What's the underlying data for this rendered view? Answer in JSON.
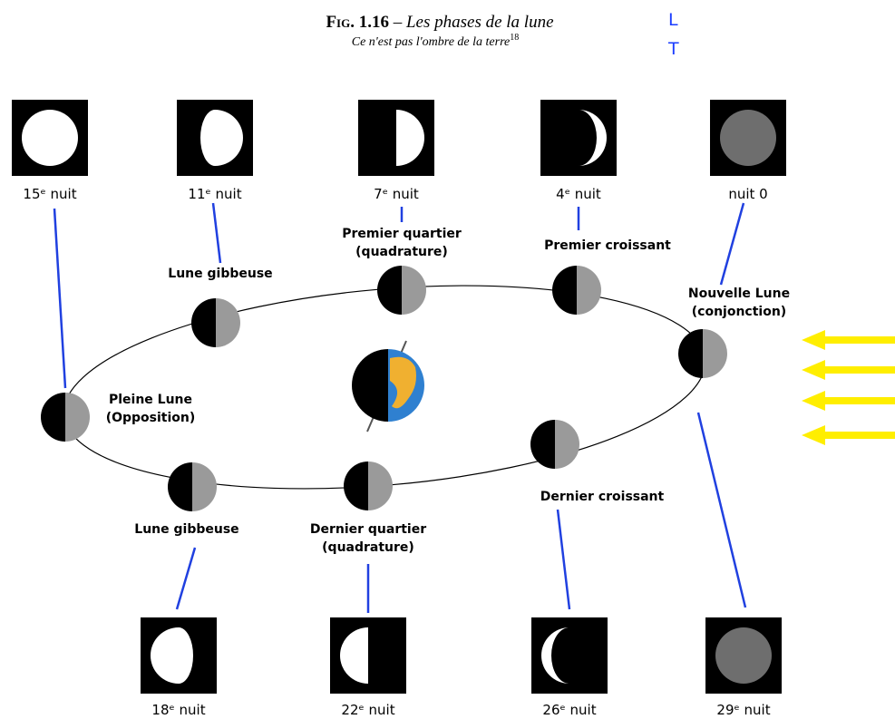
{
  "header": {
    "figure": "Fig. 1.16",
    "separator": "–",
    "title": "Les phases de la lune",
    "subtitle": "Ce n'est pas l'ombre de la terre",
    "footnote": "18"
  },
  "markers": [
    "L",
    "T"
  ],
  "top_phases": [
    "15ᵉ nuit",
    "11ᵉ nuit",
    "7ᵉ nuit",
    "4ᵉ nuit",
    "nuit 0"
  ],
  "bottom_phases": [
    "18ᵉ nuit",
    "22ᵉ nuit",
    "26ᵉ nuit",
    "29ᵉ nuit"
  ],
  "orbit_labels": [
    {
      "lines": [
        "Pleine Lune",
        "(Opposition)"
      ]
    },
    {
      "lines": [
        "Lune gibbeuse"
      ]
    },
    {
      "lines": [
        "Premier quartier",
        "(quadrature)"
      ]
    },
    {
      "lines": [
        "Premier croissant"
      ]
    },
    {
      "lines": [
        "Nouvelle Lune",
        "(conjonction)"
      ]
    },
    {
      "lines": [
        "Dernier croissant"
      ]
    },
    {
      "lines": [
        "Dernier quartier",
        "(quadrature)"
      ]
    },
    {
      "lines": [
        "Lune gibbeuse"
      ]
    }
  ]
}
